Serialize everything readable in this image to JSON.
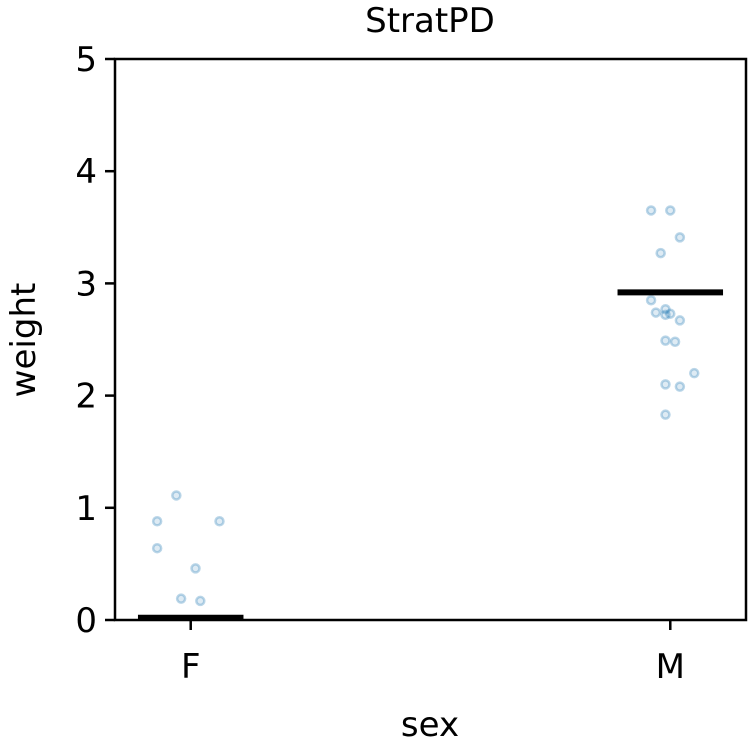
{
  "chart_data": {
    "type": "scatter",
    "title": "StratPD",
    "xlabel": "sex",
    "ylabel": "weight",
    "categories": [
      "F",
      "M"
    ],
    "ylim": [
      0,
      5
    ],
    "yticks": [
      "0",
      "1",
      "2",
      "3",
      "4",
      "5"
    ],
    "grid": false,
    "legend": "none",
    "point_color": "#1f77b4",
    "mean_color": "#000000",
    "points": [
      {
        "category": "F",
        "offset": -0.03,
        "y": 1.11
      },
      {
        "category": "F",
        "offset": -0.07,
        "y": 0.88
      },
      {
        "category": "F",
        "offset": 0.06,
        "y": 0.88
      },
      {
        "category": "F",
        "offset": -0.07,
        "y": 0.64
      },
      {
        "category": "F",
        "offset": 0.01,
        "y": 0.46
      },
      {
        "category": "F",
        "offset": -0.02,
        "y": 0.19
      },
      {
        "category": "F",
        "offset": 0.02,
        "y": 0.17
      },
      {
        "category": "M",
        "offset": -0.04,
        "y": 3.65
      },
      {
        "category": "M",
        "offset": 0.0,
        "y": 3.65
      },
      {
        "category": "M",
        "offset": 0.02,
        "y": 3.41
      },
      {
        "category": "M",
        "offset": -0.02,
        "y": 3.27
      },
      {
        "category": "M",
        "offset": -0.04,
        "y": 2.85
      },
      {
        "category": "M",
        "offset": -0.01,
        "y": 2.77
      },
      {
        "category": "M",
        "offset": -0.03,
        "y": 2.74
      },
      {
        "category": "M",
        "offset": 0.0,
        "y": 2.73
      },
      {
        "category": "M",
        "offset": 0.02,
        "y": 2.67
      },
      {
        "category": "M",
        "offset": -0.01,
        "y": 2.72
      },
      {
        "category": "M",
        "offset": -0.01,
        "y": 2.49
      },
      {
        "category": "M",
        "offset": 0.01,
        "y": 2.48
      },
      {
        "category": "M",
        "offset": 0.05,
        "y": 2.2
      },
      {
        "category": "M",
        "offset": -0.01,
        "y": 2.1
      },
      {
        "category": "M",
        "offset": 0.02,
        "y": 2.08
      },
      {
        "category": "M",
        "offset": -0.01,
        "y": 1.83
      }
    ],
    "means": [
      {
        "category": "F",
        "y": 0.02
      },
      {
        "category": "M",
        "y": 2.92
      }
    ]
  }
}
